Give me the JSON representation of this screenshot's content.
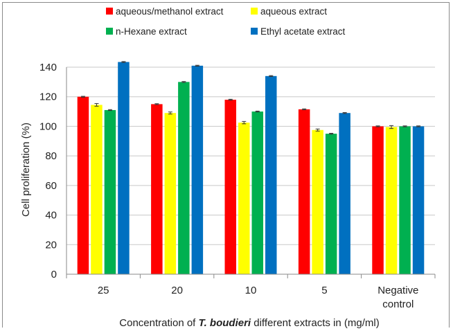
{
  "chart_data": {
    "type": "bar",
    "categories": [
      "25",
      "20",
      "10",
      "5",
      "Negative control"
    ],
    "series": [
      {
        "name": "aqueous/methanol extract",
        "color": "#ff0000",
        "values": [
          120,
          115,
          118,
          111.5,
          100
        ],
        "errors": [
          0.3,
          0.3,
          0.3,
          0.3,
          0.3
        ]
      },
      {
        "name": "aqueous extract",
        "color": "#ffff00",
        "values": [
          114.5,
          109,
          102.5,
          97.5,
          99.5
        ],
        "errors": [
          0.9,
          0.7,
          0.8,
          0.7,
          1.0
        ]
      },
      {
        "name": "n-Hexane extract",
        "color": "#00b050",
        "values": [
          111,
          130,
          110,
          95,
          100
        ],
        "errors": [
          0.3,
          0.3,
          0.3,
          0.3,
          0.3
        ]
      },
      {
        "name": "Ethyl acetate extract",
        "color": "#0070c0",
        "values": [
          143.5,
          141,
          134,
          109,
          100
        ],
        "errors": [
          0.3,
          0.3,
          0.3,
          0.3,
          0.3
        ]
      }
    ],
    "ylabel": "Cell proliferation (%)",
    "xlabel_parts": {
      "before": "Concentration of ",
      "italic": "T. boudieri",
      "after": " different extracts in (mg/ml)"
    },
    "ylim": [
      0,
      140
    ],
    "yticks": [
      0,
      20,
      40,
      60,
      80,
      100,
      120,
      140
    ],
    "grid": true,
    "legend_position": "top",
    "category_label_lines": [
      [
        "25"
      ],
      [
        "20"
      ],
      [
        "10"
      ],
      [
        "5"
      ],
      [
        "Negative",
        "control"
      ]
    ]
  }
}
